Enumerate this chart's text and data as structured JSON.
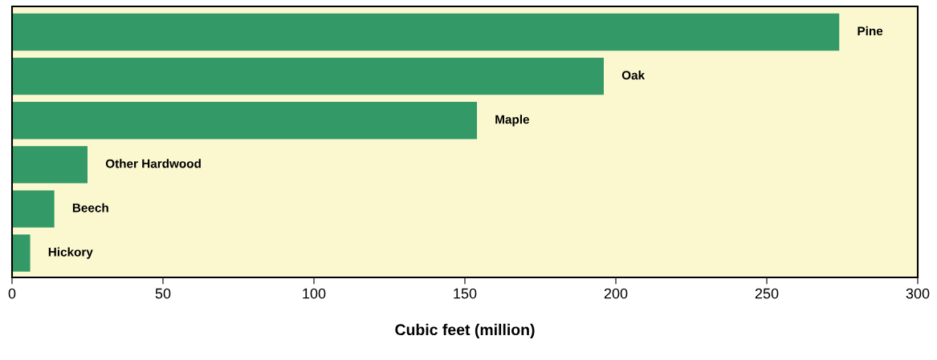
{
  "chart_data": {
    "type": "bar",
    "orientation": "horizontal",
    "xlabel": "Cubic feet (million)",
    "categories": [
      "Pine",
      "Oak",
      "Maple",
      "Other Hardwood",
      "Beech",
      "Hickory"
    ],
    "values": [
      274,
      196,
      154,
      25,
      14,
      6
    ],
    "color": "#339966",
    "xlim": [
      0,
      300
    ],
    "xticks": [
      0,
      50,
      100,
      150,
      200,
      250,
      300
    ],
    "tick_labels": "x",
    "grid": false,
    "legend": false
  }
}
